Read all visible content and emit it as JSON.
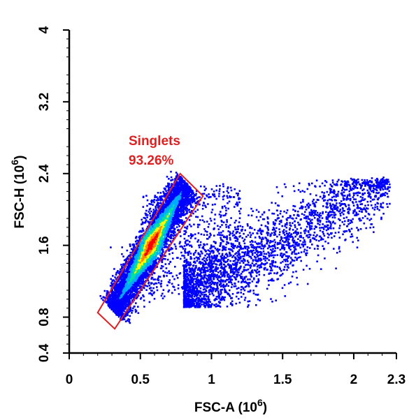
{
  "chart_data": {
    "type": "scatter",
    "subtype": "flow-cytometry-density-plot",
    "xlabel": "FSC-A  (10",
    "xlabel_exp": "6",
    "xlabel_close": ")",
    "ylabel": "FSC-H  (10",
    "ylabel_exp": "6",
    "ylabel_close": ")",
    "xlim": [
      0,
      2.3
    ],
    "ylim": [
      0.4,
      4
    ],
    "x_ticks": [
      {
        "value": 0,
        "label": "0"
      },
      {
        "value": 0.5,
        "label": "0.5"
      },
      {
        "value": 1,
        "label": "1"
      },
      {
        "value": 1.5,
        "label": "1.5"
      },
      {
        "value": 2,
        "label": "2"
      },
      {
        "value": 2.3,
        "label": "2.3"
      }
    ],
    "y_ticks": [
      {
        "value": 0.4,
        "label": "0.4"
      },
      {
        "value": 0.8,
        "label": "0.8"
      },
      {
        "value": 1.6,
        "label": "1.6"
      },
      {
        "value": 2.4,
        "label": "2.4"
      },
      {
        "value": 3.2,
        "label": "3.2"
      },
      {
        "value": 4,
        "label": "4"
      }
    ],
    "grid": false,
    "density_colors": [
      "#0000ff",
      "#00aaff",
      "#00e0a0",
      "#ffff00",
      "#ff8800",
      "#ff0000"
    ],
    "populations": [
      {
        "x_center": 0.53,
        "y_center": 1.6,
        "x_range": [
          0.3,
          0.82
        ],
        "y_range": [
          0.88,
          2.3
        ],
        "density": "high"
      },
      {
        "x_center": 1.0,
        "y_center": 1.6,
        "x_range": [
          0.45,
          2.25
        ],
        "y_range": [
          0.92,
          2.3
        ],
        "density": "sparse"
      }
    ],
    "gate": {
      "name": "Singlets",
      "percent": "93.26%",
      "color": "#e02020",
      "polygon": [
        [
          0.2,
          0.85
        ],
        [
          0.32,
          0.67
        ],
        [
          0.94,
          2.15
        ],
        [
          0.78,
          2.4
        ]
      ]
    }
  }
}
